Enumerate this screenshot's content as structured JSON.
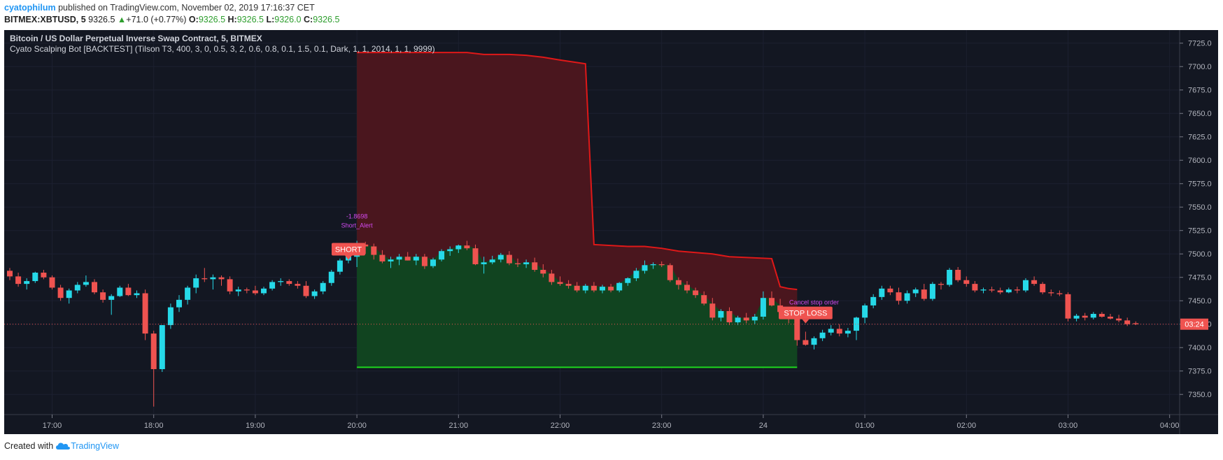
{
  "header": {
    "user": "cyatophilum",
    "published_text": " published on TradingView.com, November 02, 2019 17:16:37 CET",
    "symbol": "BITMEX:XBTUSD, 5",
    "last_price": "9326.5",
    "change": "+71.0 (+0.77%)",
    "o_label": "O:",
    "o_value": "9326.5",
    "h_label": "H:",
    "h_value": "9326.5",
    "l_label": "L:",
    "l_value": "9326.0",
    "c_label": "C:",
    "c_value": "9326.5"
  },
  "chart_title": "Bitcoin / US Dollar Perpetual Inverse Swap Contract, 5, BITMEX",
  "indicator_title": "Cyato Scalping Bot [BACKTEST] (Tilson T3, 400, 3, 0, 0.5, 3, 2, 0.6, 0.8, 0.1, 1.5, 0.1, Dark, 1, 1, 2014, 1, 1, 9999)",
  "footer": {
    "created_with": "Created with",
    "brand": "TradingView"
  },
  "colors": {
    "background": "#131722",
    "up_candle": "#26d9e8",
    "down_candle": "#ef5350",
    "stop_line": "#e01818",
    "target_line": "#1ed81e",
    "stop_zone": "#4a161e",
    "target_zone": "#114420",
    "signal_label": "#ef5350",
    "alert_text": "#d24af0"
  },
  "chart_data": {
    "type": "candlestick",
    "y_axis": {
      "min": 7330,
      "max": 7737.5,
      "ticks": [
        7350,
        7375,
        7400,
        7425,
        7450,
        7475,
        7500,
        7525,
        7550,
        7575,
        7600,
        7625,
        7650,
        7675,
        7700,
        7725
      ]
    },
    "tick_labels_y": [
      "7350.0",
      "7375.0",
      "7400.0",
      "7425.0",
      "7450.0",
      "7475.0",
      "7500.0",
      "7525.0",
      "7550.0",
      "7575.0",
      "7600.0",
      "7625.0",
      "7650.0",
      "7675.0",
      "7700.0",
      "7725.0"
    ],
    "x_axis": {
      "start": "16:35",
      "bar_minutes": 5
    },
    "time_labels": [
      {
        "label": "17:00",
        "bar": 5
      },
      {
        "label": "18:00",
        "bar": 17
      },
      {
        "label": "19:00",
        "bar": 29
      },
      {
        "label": "20:00",
        "bar": 41
      },
      {
        "label": "21:00",
        "bar": 53
      },
      {
        "label": "22:00",
        "bar": 65
      },
      {
        "label": "23:00",
        "bar": 77
      },
      {
        "label": "24",
        "bar": 89
      },
      {
        "label": "01:00",
        "bar": 101
      },
      {
        "label": "02:00",
        "bar": 113
      },
      {
        "label": "03:00",
        "bar": 125
      },
      {
        "label": "04:00",
        "bar": 137
      }
    ],
    "ohlc": [
      [
        7482,
        7485,
        7472,
        7476
      ],
      [
        7476,
        7480,
        7465,
        7468
      ],
      [
        7468,
        7474,
        7462,
        7471
      ],
      [
        7471,
        7481,
        7469,
        7480
      ],
      [
        7480,
        7483,
        7473,
        7475
      ],
      [
        7475,
        7477,
        7462,
        7464
      ],
      [
        7464,
        7467,
        7450,
        7453
      ],
      [
        7453,
        7463,
        7447,
        7461
      ],
      [
        7461,
        7470,
        7458,
        7467
      ],
      [
        7467,
        7477,
        7465,
        7470
      ],
      [
        7470,
        7473,
        7457,
        7459
      ],
      [
        7459,
        7462,
        7448,
        7451
      ],
      [
        7451,
        7457,
        7435,
        7455
      ],
      [
        7455,
        7466,
        7454,
        7464
      ],
      [
        7464,
        7468,
        7455,
        7456
      ],
      [
        7456,
        7461,
        7453,
        7458
      ],
      [
        7458,
        7462,
        7408,
        7415
      ],
      [
        7415,
        7418,
        7337,
        7377
      ],
      [
        7377,
        7424,
        7374,
        7424
      ],
      [
        7424,
        7447,
        7420,
        7443
      ],
      [
        7443,
        7456,
        7438,
        7451
      ],
      [
        7451,
        7466,
        7446,
        7464
      ],
      [
        7464,
        7478,
        7458,
        7474
      ],
      [
        7474,
        7485,
        7470,
        7473
      ],
      [
        7473,
        7478,
        7462,
        7475
      ],
      [
        7475,
        7477,
        7466,
        7473
      ],
      [
        7473,
        7476,
        7457,
        7460
      ],
      [
        7460,
        7465,
        7455,
        7462
      ],
      [
        7462,
        7464,
        7458,
        7461
      ],
      [
        7461,
        7466,
        7456,
        7458
      ],
      [
        7458,
        7465,
        7456,
        7463
      ],
      [
        7463,
        7472,
        7461,
        7470
      ],
      [
        7470,
        7474,
        7466,
        7471
      ],
      [
        7471,
        7473,
        7466,
        7468
      ],
      [
        7468,
        7471,
        7463,
        7466
      ],
      [
        7466,
        7471,
        7453,
        7455
      ],
      [
        7455,
        7462,
        7452,
        7460
      ],
      [
        7460,
        7471,
        7457,
        7469
      ],
      [
        7469,
        7483,
        7466,
        7481
      ],
      [
        7481,
        7495,
        7478,
        7493
      ],
      [
        7493,
        7508,
        7490,
        7502
      ],
      [
        7497,
        7514,
        7486,
        7511
      ],
      [
        7510,
        7513,
        7500,
        7508
      ],
      [
        7508,
        7511,
        7494,
        7499
      ],
      [
        7499,
        7504,
        7490,
        7492
      ],
      [
        7492,
        7497,
        7485,
        7494
      ],
      [
        7494,
        7500,
        7488,
        7497
      ],
      [
        7497,
        7502,
        7493,
        7493
      ],
      [
        7493,
        7500,
        7488,
        7497
      ],
      [
        7497,
        7500,
        7484,
        7487
      ],
      [
        7487,
        7496,
        7485,
        7494
      ],
      [
        7494,
        7505,
        7492,
        7503
      ],
      [
        7503,
        7508,
        7498,
        7505
      ],
      [
        7505,
        7510,
        7501,
        7509
      ],
      [
        7509,
        7514,
        7504,
        7506
      ],
      [
        7506,
        7510,
        7488,
        7489
      ],
      [
        7489,
        7497,
        7479,
        7491
      ],
      [
        7491,
        7498,
        7489,
        7494
      ],
      [
        7494,
        7501,
        7491,
        7499
      ],
      [
        7499,
        7503,
        7488,
        7490
      ],
      [
        7490,
        7495,
        7486,
        7489
      ],
      [
        7489,
        7494,
        7485,
        7491
      ],
      [
        7491,
        7496,
        7481,
        7483
      ],
      [
        7483,
        7489,
        7475,
        7479
      ],
      [
        7479,
        7483,
        7467,
        7470
      ],
      [
        7470,
        7476,
        7466,
        7468
      ],
      [
        7468,
        7472,
        7463,
        7466
      ],
      [
        7466,
        7470,
        7459,
        7461
      ],
      [
        7461,
        7468,
        7458,
        7466
      ],
      [
        7466,
        7470,
        7459,
        7461
      ],
      [
        7461,
        7467,
        7458,
        7465
      ],
      [
        7465,
        7468,
        7459,
        7461
      ],
      [
        7461,
        7470,
        7459,
        7469
      ],
      [
        7469,
        7475,
        7466,
        7474
      ],
      [
        7474,
        7485,
        7471,
        7482
      ],
      [
        7482,
        7493,
        7479,
        7488
      ],
      [
        7488,
        7491,
        7484,
        7489
      ],
      [
        7489,
        7492,
        7486,
        7488
      ],
      [
        7488,
        7490,
        7470,
        7472
      ],
      [
        7472,
        7475,
        7462,
        7467
      ],
      [
        7467,
        7471,
        7458,
        7461
      ],
      [
        7461,
        7464,
        7453,
        7456
      ],
      [
        7456,
        7460,
        7445,
        7447
      ],
      [
        7447,
        7453,
        7429,
        7432
      ],
      [
        7432,
        7441,
        7428,
        7439
      ],
      [
        7439,
        7443,
        7424,
        7427
      ],
      [
        7427,
        7434,
        7424,
        7432
      ],
      [
        7432,
        7437,
        7426,
        7429
      ],
      [
        7429,
        7436,
        7425,
        7433
      ],
      [
        7433,
        7460,
        7430,
        7453
      ],
      [
        7453,
        7460,
        7444,
        7445
      ],
      [
        7445,
        7452,
        7436,
        7438
      ],
      [
        7438,
        7441,
        7426,
        7432
      ],
      [
        7432,
        7437,
        7402,
        7408
      ],
      [
        7408,
        7417,
        7402,
        7403
      ],
      [
        7403,
        7412,
        7398,
        7410
      ],
      [
        7410,
        7419,
        7407,
        7416
      ],
      [
        7416,
        7424,
        7413,
        7420
      ],
      [
        7420,
        7425,
        7412,
        7415
      ],
      [
        7415,
        7421,
        7411,
        7418
      ],
      [
        7418,
        7433,
        7408,
        7432
      ],
      [
        7432,
        7447,
        7426,
        7445
      ],
      [
        7445,
        7457,
        7442,
        7454
      ],
      [
        7454,
        7466,
        7451,
        7463
      ],
      [
        7463,
        7466,
        7456,
        7459
      ],
      [
        7459,
        7464,
        7446,
        7450
      ],
      [
        7450,
        7461,
        7447,
        7458
      ],
      [
        7458,
        7464,
        7454,
        7462
      ],
      [
        7462,
        7468,
        7450,
        7452
      ],
      [
        7452,
        7470,
        7450,
        7468
      ],
      [
        7468,
        7470,
        7462,
        7467
      ],
      [
        7467,
        7485,
        7465,
        7483
      ],
      [
        7483,
        7486,
        7470,
        7472
      ],
      [
        7472,
        7476,
        7465,
        7468
      ],
      [
        7468,
        7471,
        7459,
        7461
      ],
      [
        7461,
        7464,
        7458,
        7462
      ],
      [
        7462,
        7465,
        7459,
        7461
      ],
      [
        7461,
        7464,
        7457,
        7459
      ],
      [
        7459,
        7464,
        7458,
        7462
      ],
      [
        7462,
        7465,
        7458,
        7461
      ],
      [
        7461,
        7474,
        7459,
        7472
      ],
      [
        7472,
        7476,
        7466,
        7468
      ],
      [
        7468,
        7470,
        7457,
        7459
      ],
      [
        7459,
        7462,
        7455,
        7458
      ],
      [
        7458,
        7461,
        7455,
        7457
      ],
      [
        7457,
        7459,
        7428,
        7431
      ],
      [
        7431,
        7436,
        7428,
        7434
      ],
      [
        7434,
        7437,
        7429,
        7432
      ],
      [
        7432,
        7438,
        7430,
        7436
      ],
      [
        7436,
        7438,
        7432,
        7433
      ],
      [
        7433,
        7436,
        7430,
        7431
      ],
      [
        7431,
        7435,
        7427,
        7429
      ],
      [
        7429,
        7432,
        7423,
        7425
      ],
      [
        7426,
        7428,
        7424,
        7425
      ]
    ],
    "series": [
      {
        "name": "stop",
        "start_bar": 41,
        "end_bar": 93,
        "x": [
          41,
          54,
          56,
          59,
          61,
          63,
          65,
          68,
          69,
          73,
          75,
          77,
          79,
          83,
          85,
          90,
          91,
          92,
          93
        ],
        "y": [
          7715,
          7715,
          7713,
          7713,
          7712,
          7710,
          7707,
          7703,
          7510,
          7508,
          7508,
          7506,
          7503,
          7500,
          7497,
          7495,
          7465,
          7463,
          7462
        ]
      },
      {
        "name": "target",
        "start_bar": 41,
        "end_bar": 93,
        "value": 7379
      }
    ],
    "markers": [
      {
        "type": "signal",
        "text": "SHORT",
        "bar": 40,
        "price": 7505
      },
      {
        "type": "signal",
        "text": "STOP LOSS",
        "bar": 94,
        "price": 7437
      },
      {
        "type": "alert",
        "text": "-1.8698",
        "bar": 41,
        "price": 7538
      },
      {
        "type": "alert",
        "text": "Short_Alert",
        "bar": 41,
        "price": 7528
      },
      {
        "type": "alert",
        "text": "Cancel stop order",
        "bar": 95,
        "price": 7446
      }
    ],
    "last_price_tag": "03:24",
    "last_price": 7425
  }
}
